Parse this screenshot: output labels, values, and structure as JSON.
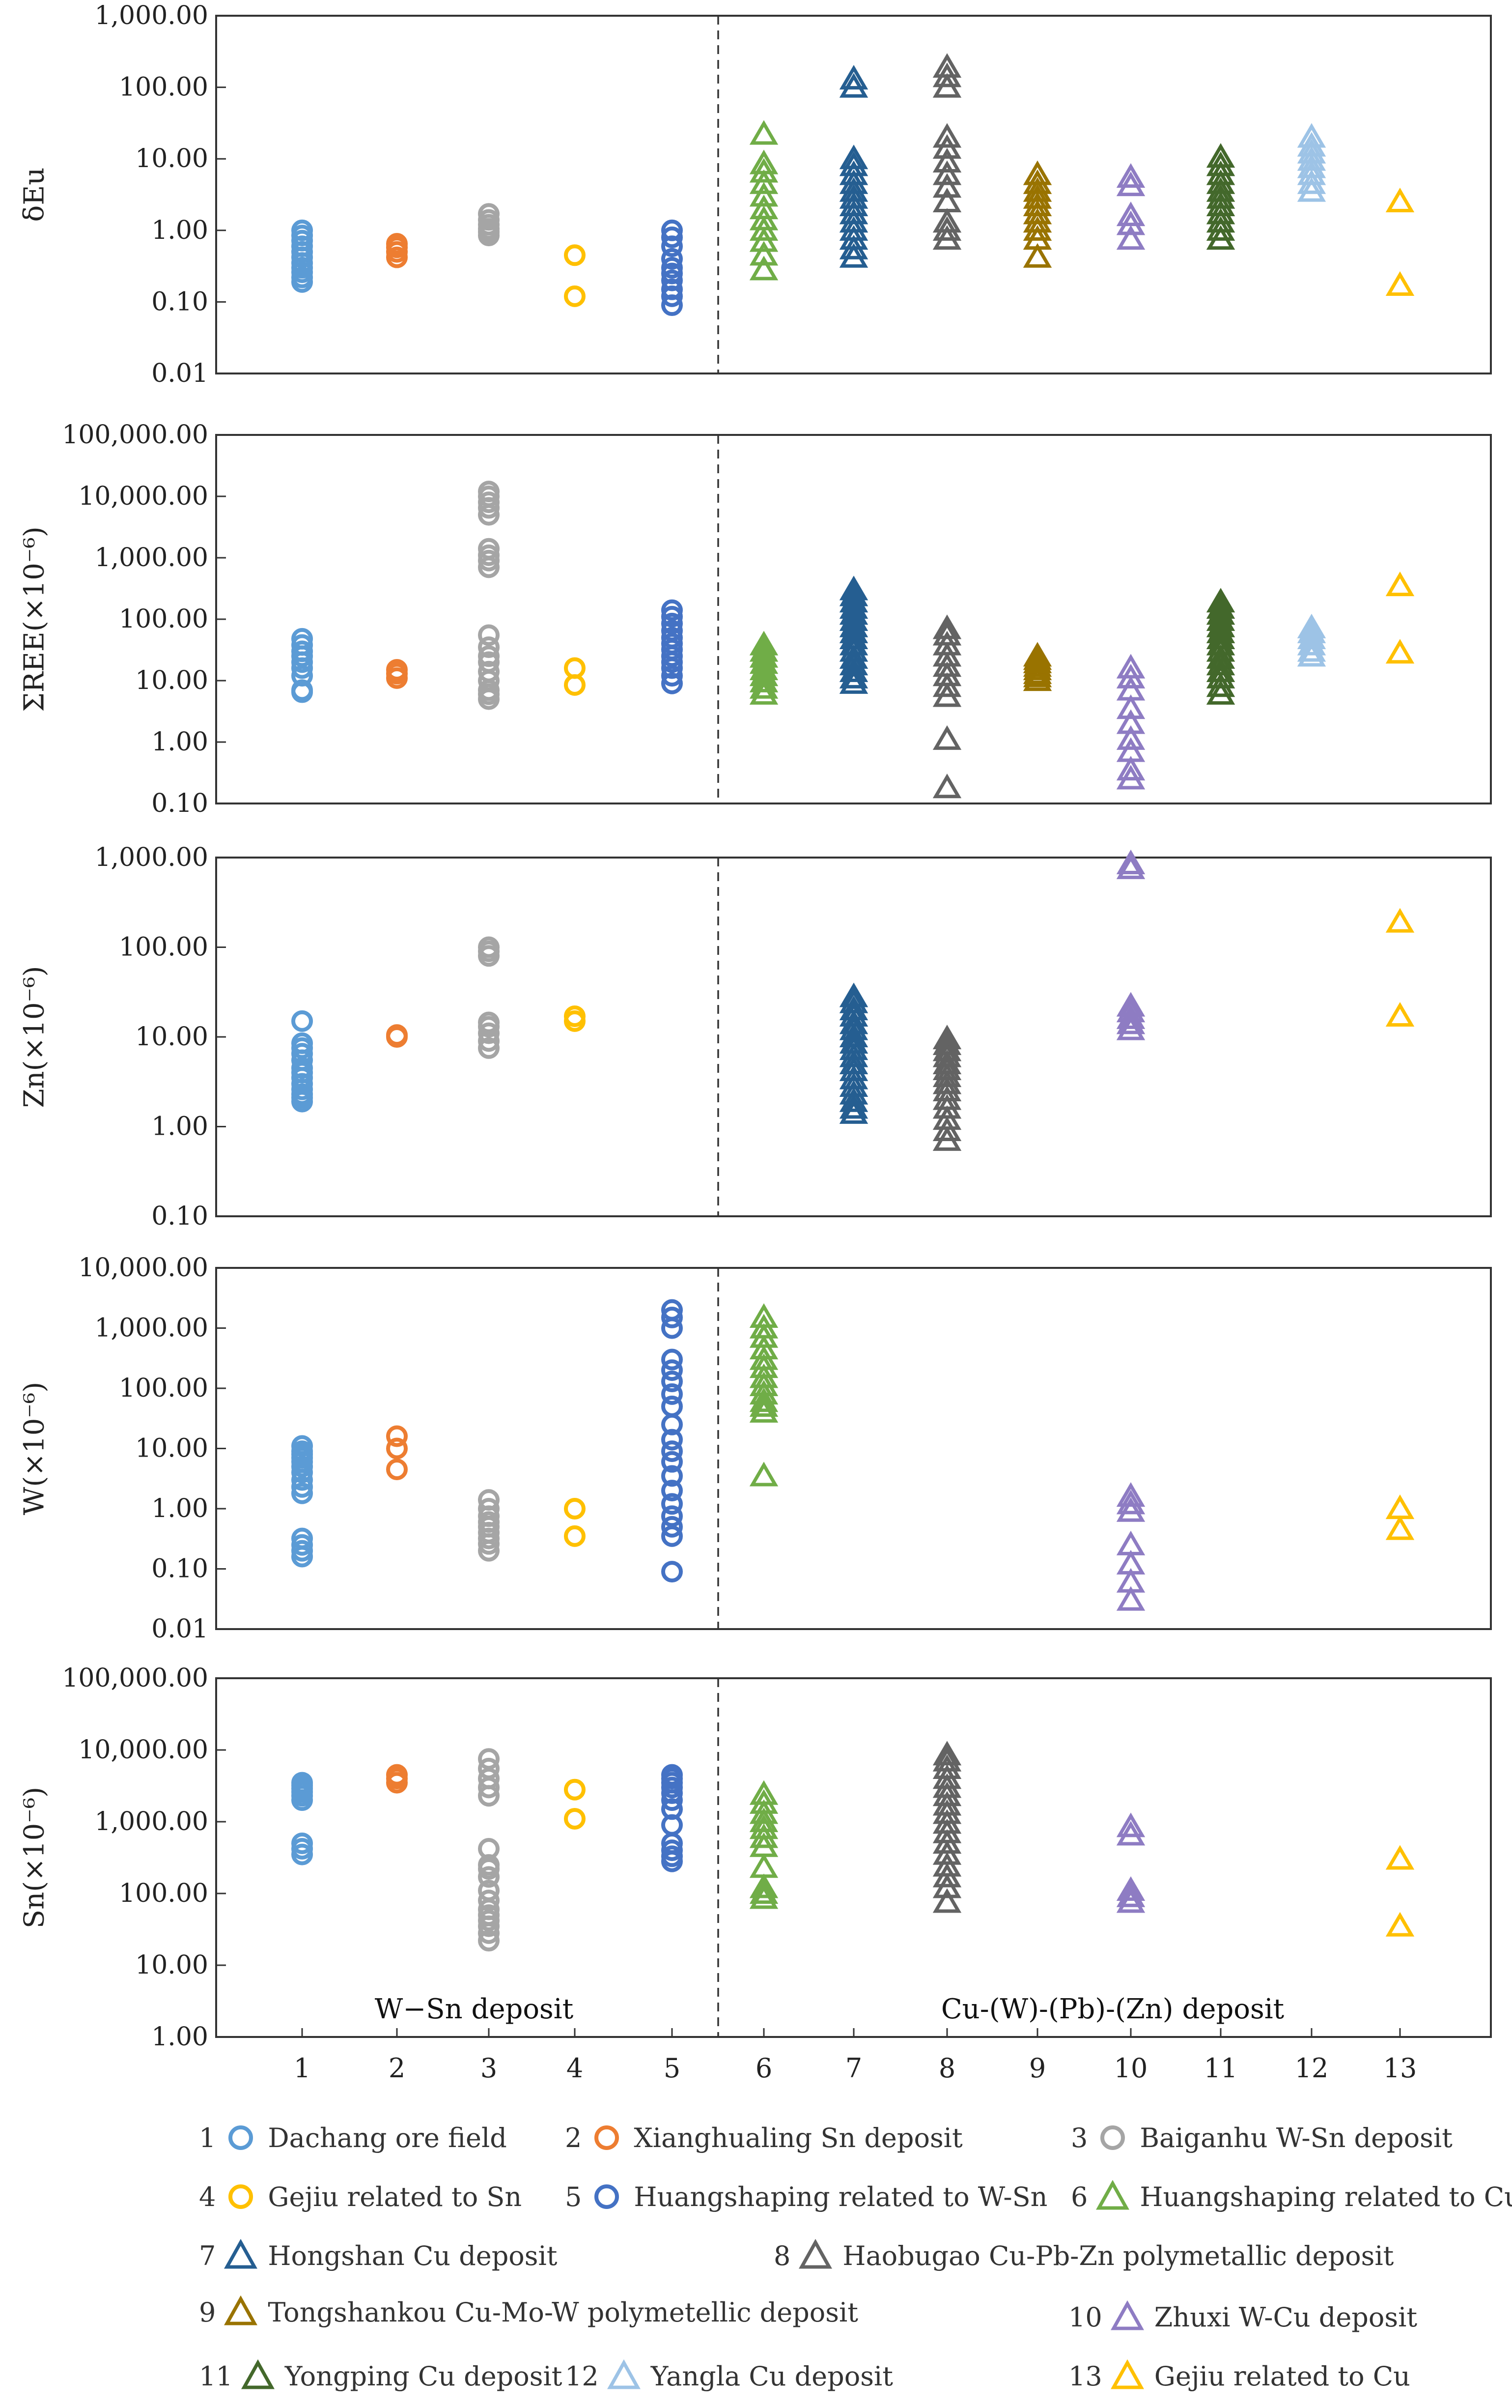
{
  "chart_data": {
    "type": "scatter",
    "y_scale": "log",
    "x_categories": [
      "1",
      "2",
      "3",
      "4",
      "5",
      "6",
      "7",
      "8",
      "9",
      "10",
      "11",
      "12",
      "13"
    ],
    "group_labels": [
      "W−Sn deposit",
      "Cu-(W)-(Pb)-(Zn) deposit"
    ],
    "group_divider_after": 5,
    "legend": [
      {
        "id": "1",
        "num": "1",
        "label": "Dachang ore field",
        "marker": "circle",
        "color": "#5b9bd5"
      },
      {
        "id": "2",
        "num": "2",
        "label": "Xianghualing Sn deposit",
        "marker": "circle",
        "color": "#ed7d31"
      },
      {
        "id": "3",
        "num": "3",
        "label": "Baiganhu W-Sn deposit",
        "marker": "circle",
        "color": "#a5a5a5"
      },
      {
        "id": "4",
        "num": "4",
        "label": "Gejiu related to Sn",
        "marker": "circle",
        "color": "#ffc000"
      },
      {
        "id": "5",
        "num": "5",
        "label": "Huangshaping related to W-Sn",
        "marker": "circle",
        "color": "#4472c4"
      },
      {
        "id": "6",
        "num": "6",
        "label": "Huangshaping related to Cu",
        "marker": "triangle",
        "color": "#70ad47"
      },
      {
        "id": "7",
        "num": "7",
        "label": "Hongshan Cu deposit",
        "marker": "triangle",
        "color": "#255e91"
      },
      {
        "id": "8",
        "num": "8",
        "label": "Haobugao Cu-Pb-Zn polymetallic deposit",
        "marker": "triangle",
        "color": "#636363"
      },
      {
        "id": "9",
        "num": "9",
        "label": "Tongshankou Cu-Mo-W polymetellic deposit",
        "marker": "triangle",
        "color": "#997300"
      },
      {
        "id": "10",
        "num": "10",
        "label": "Zhuxi W-Cu deposit",
        "marker": "triangle",
        "color": "#8e7cc3"
      },
      {
        "id": "11",
        "num": "11",
        "label": "Yongping Cu deposit",
        "marker": "triangle",
        "color": "#43682b"
      },
      {
        "id": "12",
        "num": "12",
        "label": "Yangla Cu deposit",
        "marker": "triangle",
        "color": "#9dc3e6"
      },
      {
        "id": "13",
        "num": "13",
        "label": "Gejiu related to Cu",
        "marker": "triangle",
        "color": "#ffc000"
      }
    ],
    "panels": [
      {
        "id": "eu",
        "ylabel": "δEu",
        "ylim": [
          0.01,
          1000
        ],
        "ticks": [
          {
            "v": 1000,
            "t": "1,000.00"
          },
          {
            "v": 100,
            "t": "100.00"
          },
          {
            "v": 10,
            "t": "10.00"
          },
          {
            "v": 1,
            "t": "1.00"
          },
          {
            "v": 0.1,
            "t": "0.10"
          },
          {
            "v": 0.01,
            "t": "0.01"
          }
        ],
        "series": {
          "1": [
            0.19,
            0.22,
            0.26,
            0.3,
            0.35,
            0.42,
            0.5,
            0.6,
            0.72,
            0.85,
            1.0
          ],
          "2": [
            0.42,
            0.5,
            0.58,
            0.65
          ],
          "3": [
            0.85,
            0.95,
            1.05,
            1.2,
            1.4,
            1.7
          ],
          "4": [
            0.12,
            0.45
          ],
          "5": [
            0.09,
            0.12,
            0.15,
            0.2,
            0.25,
            0.3,
            0.4,
            0.6,
            0.8,
            1.0
          ],
          "6": [
            0.28,
            0.45,
            0.7,
            1.0,
            1.4,
            2.0,
            3.0,
            4.5,
            6.5,
            8.5,
            22
          ],
          "7": [
            0.42,
            0.55,
            0.75,
            1.0,
            1.3,
            1.7,
            2.2,
            2.8,
            3.5,
            4.5,
            6.0,
            8.0,
            10.0,
            100,
            130
          ],
          "8": [
            0.75,
            1.0,
            1.3,
            2.5,
            4.0,
            6.0,
            9.0,
            14,
            20,
            100,
            140,
            190
          ],
          "9": [
            0.42,
            0.75,
            1.0,
            1.3,
            1.7,
            2.2,
            2.8,
            3.5,
            4.5,
            6.0
          ],
          "10": [
            0.75,
            1.2,
            1.6,
            4.2,
            5.5
          ],
          "11": [
            0.75,
            1.0,
            1.3,
            1.7,
            2.2,
            2.8,
            3.5,
            4.5,
            6.0,
            8.0,
            10.5
          ],
          "12": [
            3.5,
            4.5,
            6.0,
            7.5,
            9.5,
            12,
            15,
            20
          ],
          "13": [
            0.17,
            2.5
          ]
        }
      },
      {
        "id": "ree",
        "ylabel": "ΣREE(×10⁻⁶)",
        "ylim": [
          0.1,
          100000
        ],
        "ticks": [
          {
            "v": 100000,
            "t": "100,000.00"
          },
          {
            "v": 10000,
            "t": "10,000.00"
          },
          {
            "v": 1000,
            "t": "1,000.00"
          },
          {
            "v": 100,
            "t": "100.00"
          },
          {
            "v": 10,
            "t": "10.00"
          },
          {
            "v": 1,
            "t": "1.00"
          },
          {
            "v": 0.1,
            "t": "0.10"
          }
        ],
        "series": {
          "1": [
            6.5,
            7,
            12,
            16,
            20,
            25,
            30,
            38,
            48
          ],
          "2": [
            11,
            13,
            15
          ],
          "3": [
            5,
            6,
            7,
            10,
            14,
            20,
            25,
            35,
            55,
            700,
            900,
            1100,
            1400,
            5000,
            6500,
            8000,
            10000,
            12000
          ],
          "4": [
            8.5,
            16
          ],
          "5": [
            9,
            12,
            16,
            20,
            25,
            32,
            40,
            50,
            65,
            85,
            110,
            140
          ],
          "6": [
            6,
            7.5,
            9.5,
            12,
            15,
            19,
            24,
            30,
            38
          ],
          "7": [
            9,
            11,
            14,
            18,
            23,
            30,
            38,
            48,
            60,
            75,
            95,
            120,
            150,
            190,
            240,
            300
          ],
          "8": [
            0.18,
            1.1,
            5.5,
            8,
            12,
            17,
            25,
            38,
            55,
            70
          ],
          "9": [
            10,
            11.5,
            13,
            15,
            17,
            19.5,
            22,
            25
          ],
          "10": [
            0.25,
            0.35,
            0.7,
            1.1,
            2,
            3.5,
            7,
            11,
            16
          ],
          "11": [
            6,
            8,
            11,
            14,
            18,
            23,
            30,
            38,
            48,
            60,
            75,
            95,
            120,
            150,
            190
          ],
          "12": [
            25,
            30,
            38,
            48,
            60,
            72
          ],
          "13": [
            28,
            350
          ]
        }
      },
      {
        "id": "zn",
        "ylabel": "Zn(×10⁻⁶)",
        "ylim": [
          0.1,
          1000
        ],
        "ticks": [
          {
            "v": 1000,
            "t": "1,000.00"
          },
          {
            "v": 100,
            "t": "100.00"
          },
          {
            "v": 10,
            "t": "10.00"
          },
          {
            "v": 1,
            "t": "1.00"
          },
          {
            "v": 0.1,
            "t": "0.10"
          }
        ],
        "series": {
          "1": [
            1.9,
            2.1,
            2.3,
            2.6,
            3,
            3.5,
            4,
            4.5,
            5.5,
            6.5,
            7.5,
            8.5,
            15
          ],
          "2": [
            10,
            10.5
          ],
          "3": [
            7.5,
            9,
            11,
            13,
            14.5,
            80,
            90,
            100
          ],
          "4": [
            15,
            17
          ],
          "5": [],
          "6": [],
          "7": [
            1.4,
            1.6,
            1.9,
            2.3,
            2.8,
            3.4,
            4.2,
            5,
            6,
            7.2,
            8.5,
            10,
            12,
            14,
            17,
            20,
            24,
            28
          ],
          "8": [
            0.7,
            0.9,
            1.2,
            1.6,
            2,
            2.5,
            3,
            3.6,
            4.3,
            5,
            6,
            7,
            8.2,
            9.5
          ],
          "9": [],
          "10": [
            12,
            14,
            16,
            19,
            22,
            750,
            850
          ],
          "11": [],
          "12": [],
          "13": [
            17,
            190
          ]
        }
      },
      {
        "id": "w",
        "ylabel": "W(×10⁻⁶)",
        "ylim": [
          0.01,
          10000
        ],
        "ticks": [
          {
            "v": 10000,
            "t": "10,000.00"
          },
          {
            "v": 1000,
            "t": "1,000.00"
          },
          {
            "v": 100,
            "t": "100.00"
          },
          {
            "v": 10,
            "t": "10.00"
          },
          {
            "v": 1,
            "t": "1.00"
          },
          {
            "v": 0.1,
            "t": "0.10"
          },
          {
            "v": 0.01,
            "t": "0.01"
          }
        ],
        "series": {
          "1": [
            0.16,
            0.2,
            0.25,
            0.32,
            1.8,
            2.3,
            3,
            4,
            5,
            6,
            7,
            8,
            9,
            11
          ],
          "2": [
            4.5,
            10,
            16
          ],
          "3": [
            0.2,
            0.26,
            0.32,
            0.4,
            0.5,
            0.6,
            0.75,
            1.0,
            1.4
          ],
          "4": [
            0.35,
            1.0
          ],
          "5": [
            0.09,
            0.35,
            0.5,
            0.75,
            1.2,
            2,
            3.5,
            6,
            9,
            14,
            25,
            50,
            80,
            130,
            200,
            300,
            1000,
            1500,
            2000
          ],
          "6": [
            3.5,
            40,
            50,
            60,
            80,
            110,
            150,
            220,
            300,
            450,
            700,
            1000,
            1500
          ],
          "7": [],
          "8": [],
          "9": [],
          "10": [
            0.03,
            0.06,
            0.12,
            0.25,
            0.9,
            1.2,
            1.6
          ],
          "11": [],
          "12": [],
          "13": [
            0.45,
            1.0
          ]
        }
      },
      {
        "id": "sn",
        "ylabel": "Sn(×10⁻⁶)",
        "ylim": [
          1,
          100000
        ],
        "ticks": [
          {
            "v": 100000,
            "t": "100,000.00"
          },
          {
            "v": 10000,
            "t": "10,000.00"
          },
          {
            "v": 1000,
            "t": "1,000.00"
          },
          {
            "v": 100,
            "t": "100.00"
          },
          {
            "v": 10,
            "t": "10.00"
          },
          {
            "v": 1,
            "t": "1.00"
          }
        ],
        "series": {
          "1": [
            350,
            420,
            500,
            2000,
            2300,
            2600,
            2900,
            3200,
            3500
          ],
          "2": [
            3500,
            4000,
            4500
          ],
          "3": [
            22,
            28,
            35,
            42,
            50,
            60,
            80,
            110,
            170,
            220,
            250,
            420,
            2300,
            3000,
            4000,
            5500,
            7500
          ],
          "4": [
            1100,
            2800
          ],
          "5": [
            280,
            330,
            400,
            500,
            900,
            1500,
            2000,
            2500,
            3000,
            3500,
            4000,
            4500
          ],
          "6": [
            85,
            100,
            120,
            230,
            450,
            600,
            800,
            1000,
            1300,
            1800,
            2400
          ],
          "7": [],
          "8": [
            75,
            120,
            170,
            240,
            350,
            500,
            700,
            950,
            1300,
            1700,
            2300,
            3000,
            4000,
            5500,
            7000,
            8500
          ],
          "9": [],
          "10": [
            75,
            90,
            110,
            650,
            850
          ],
          "11": [],
          "12": [],
          "13": [
            35,
            300
          ]
        }
      }
    ]
  }
}
